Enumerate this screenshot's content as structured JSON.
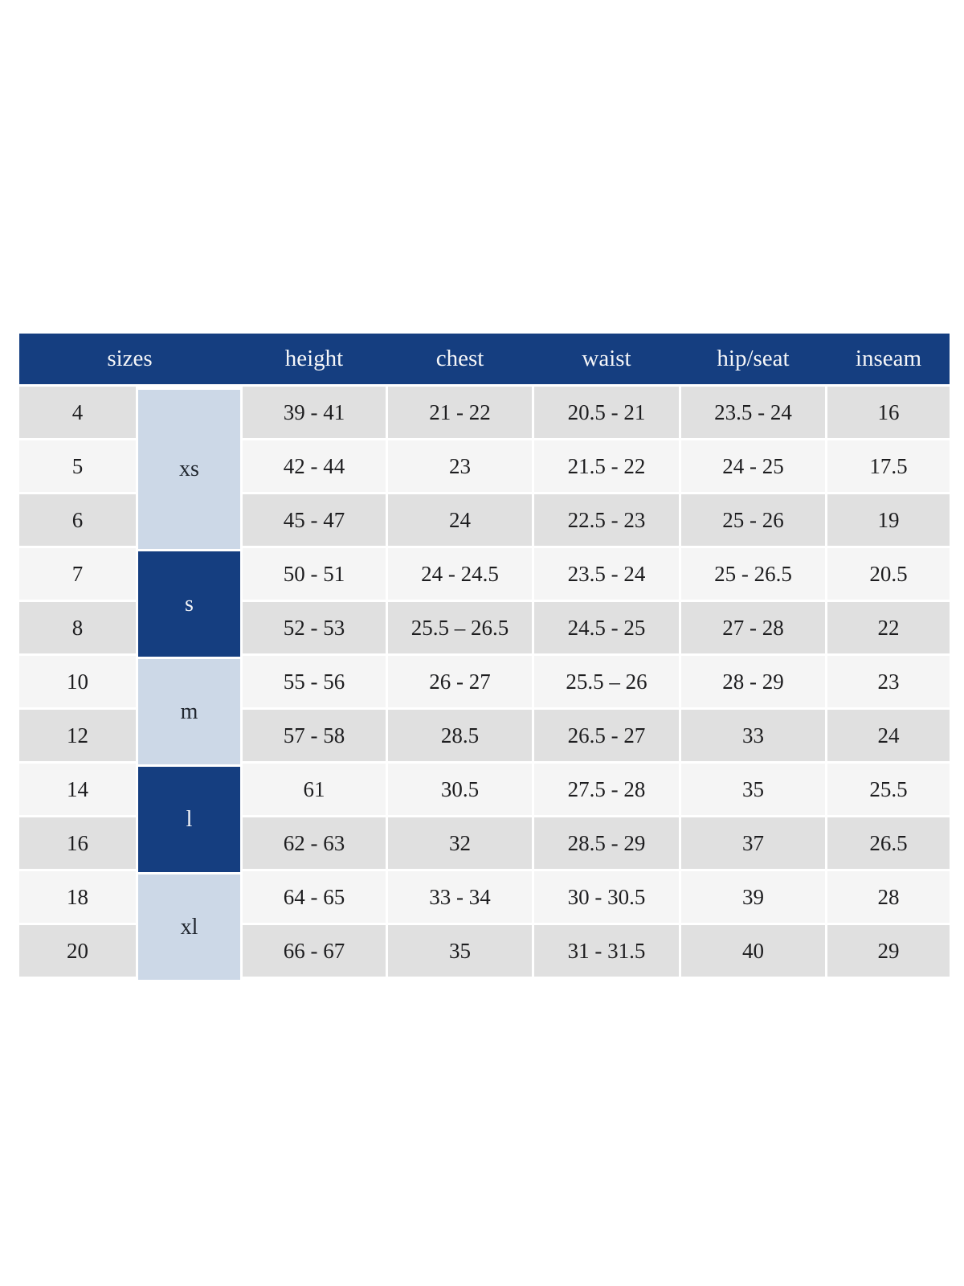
{
  "chart_data": {
    "type": "table",
    "columns": [
      "sizes",
      "height",
      "chest",
      "waist",
      "hip/seat",
      "inseam"
    ],
    "size_groups": [
      {
        "label": "xs",
        "rows": 3,
        "variant": "light"
      },
      {
        "label": "s",
        "rows": 2,
        "variant": "dark"
      },
      {
        "label": "m",
        "rows": 2,
        "variant": "light"
      },
      {
        "label": "l",
        "rows": 2,
        "variant": "dark"
      },
      {
        "label": "xl",
        "rows": 2,
        "variant": "light"
      }
    ],
    "rows": [
      {
        "size": "4",
        "height": "39 - 41",
        "chest": "21 - 22",
        "waist": "20.5 - 21",
        "hip_seat": "23.5 - 24",
        "inseam": "16"
      },
      {
        "size": "5",
        "height": "42 - 44",
        "chest": "23",
        "waist": "21.5 - 22",
        "hip_seat": "24 - 25",
        "inseam": "17.5"
      },
      {
        "size": "6",
        "height": "45 - 47",
        "chest": "24",
        "waist": "22.5 - 23",
        "hip_seat": "25 - 26",
        "inseam": "19"
      },
      {
        "size": "7",
        "height": "50 - 51",
        "chest": "24 - 24.5",
        "waist": "23.5 - 24",
        "hip_seat": "25 - 26.5",
        "inseam": "20.5"
      },
      {
        "size": "8",
        "height": "52 - 53",
        "chest": "25.5 – 26.5",
        "waist": "24.5 - 25",
        "hip_seat": "27 - 28",
        "inseam": "22"
      },
      {
        "size": "10",
        "height": "55 - 56",
        "chest": "26 - 27",
        "waist": "25.5 – 26",
        "hip_seat": "28 - 29",
        "inseam": "23"
      },
      {
        "size": "12",
        "height": "57 - 58",
        "chest": "28.5",
        "waist": "26.5 - 27",
        "hip_seat": "33",
        "inseam": "24"
      },
      {
        "size": "14",
        "height": "61",
        "chest": "30.5",
        "waist": "27.5 - 28",
        "hip_seat": "35",
        "inseam": "25.5"
      },
      {
        "size": "16",
        "height": "62 - 63",
        "chest": "32",
        "waist": "28.5 - 29",
        "hip_seat": "37",
        "inseam": "26.5"
      },
      {
        "size": "18",
        "height": "64 - 65",
        "chest": "33 - 34",
        "waist": "30 - 30.5",
        "hip_seat": "39",
        "inseam": "28"
      },
      {
        "size": "20",
        "height": "66 - 67",
        "chest": "35",
        "waist": "31 - 31.5",
        "hip_seat": "40",
        "inseam": "29"
      }
    ]
  },
  "colors": {
    "header_bg": "#153e80",
    "header_text": "#f5f6f8",
    "group_light_bg": "#ccd8e7",
    "group_dark_bg": "#153e80",
    "group_label_text": "#20262e",
    "row_gray": "#e0e0e0",
    "row_light": "#f5f5f5",
    "body_text": "#1d1d1f"
  }
}
